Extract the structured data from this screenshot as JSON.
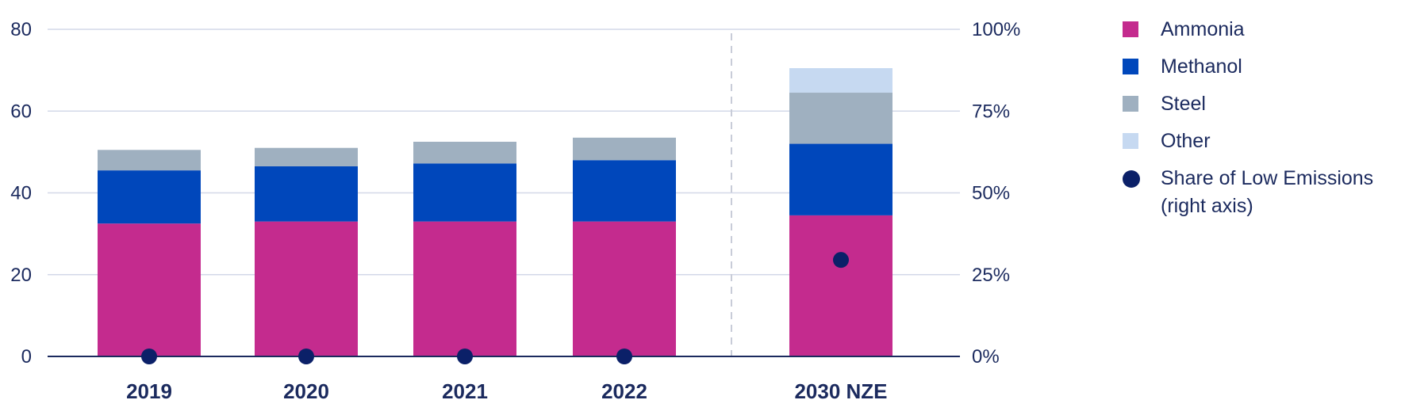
{
  "chart_data": {
    "type": "bar",
    "stacked": true,
    "categories": [
      "2019",
      "2020",
      "2021",
      "2022",
      "2030 NZE"
    ],
    "series": [
      {
        "name": "Ammonia",
        "values": [
          32.5,
          33,
          33,
          33,
          34.5
        ],
        "color": "#c42b8e"
      },
      {
        "name": "Methanol",
        "values": [
          13,
          13.5,
          14.2,
          15,
          17.5
        ],
        "color": "#0047bb"
      },
      {
        "name": "Steel",
        "values": [
          5,
          4.5,
          5.3,
          5.5,
          12.5
        ],
        "color": "#9fb0c0"
      },
      {
        "name": "Other",
        "values": [
          0,
          0,
          0,
          0,
          6
        ],
        "color": "#c6d9f1"
      }
    ],
    "secondary_series": {
      "name": "Share of Low Emissions\n(right axis)",
      "type": "scatter",
      "values": [
        0,
        0,
        0,
        0,
        0.295
      ],
      "color": "#0b2068"
    },
    "ylim": [
      0,
      80
    ],
    "y_ticks": [
      "0",
      "20",
      "40",
      "60",
      "80"
    ],
    "y2lim": [
      0,
      1
    ],
    "y2_ticks": [
      "0%",
      "25%",
      "50%",
      "75%",
      "100%"
    ],
    "grid": true,
    "legend_position": "right",
    "projection_divider_before": "2030 NZE"
  },
  "colors": {
    "text": "#1b2a5e",
    "grid": "#d3d8e8",
    "axis": "#1b2a5e",
    "divider": "#c8ccd8"
  }
}
